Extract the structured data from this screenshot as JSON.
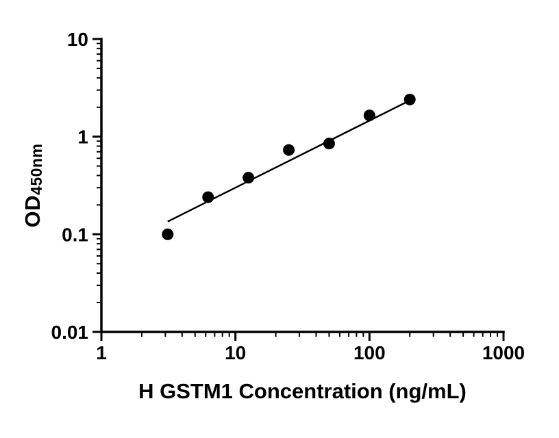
{
  "chart_data": {
    "type": "scatter",
    "title": "",
    "xlabel": "H GSTM1 Concentration (ng/mL)",
    "ylabel_main": "OD",
    "ylabel_sub": "450nm",
    "x_scale": "log",
    "y_scale": "log",
    "xlim": [
      1,
      1000
    ],
    "ylim": [
      0.01,
      10
    ],
    "x_ticks": [
      1,
      10,
      100,
      1000
    ],
    "x_tick_labels": [
      "1",
      "10",
      "100",
      "1000"
    ],
    "y_ticks": [
      0.01,
      0.1,
      1,
      10
    ],
    "y_tick_labels": [
      "0.01",
      "0.1",
      "1",
      "10"
    ],
    "grid": false,
    "legend": "none",
    "points": {
      "x": [
        3.125,
        6.25,
        12.5,
        25,
        50,
        100,
        200
      ],
      "y": [
        0.1,
        0.24,
        0.38,
        0.73,
        0.85,
        1.65,
        2.4
      ]
    },
    "fit_line": {
      "x1": 3.125,
      "y1": 0.135,
      "x2": 200,
      "y2": 2.35
    },
    "marker_color": "#000000",
    "line_color": "#000000",
    "axis_color": "#000000",
    "background": "#ffffff"
  }
}
